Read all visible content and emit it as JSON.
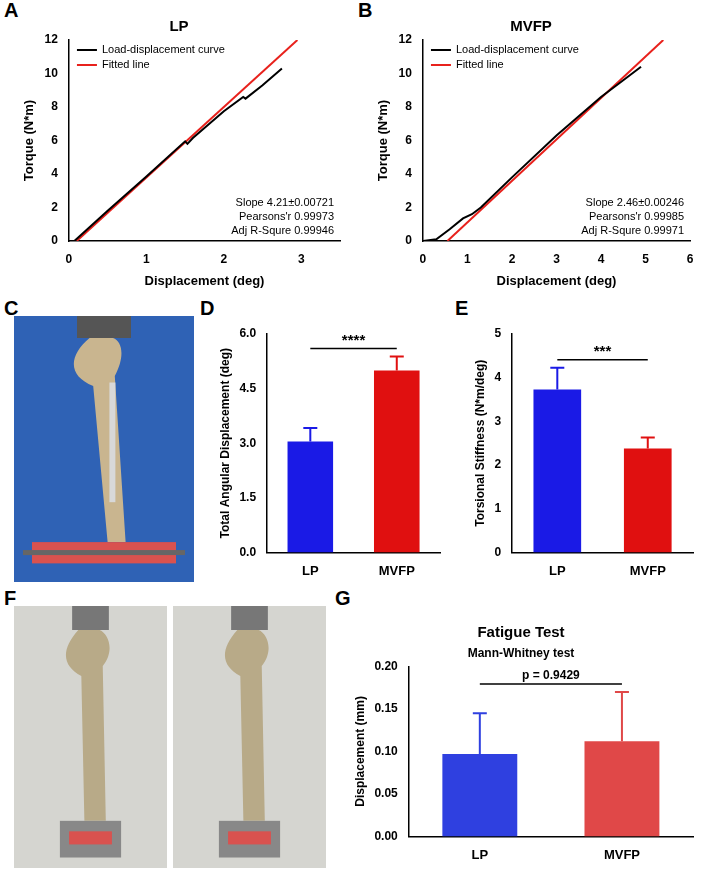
{
  "chart_data": [
    {
      "panel_label": "A",
      "type": "line",
      "title": "LP",
      "x_label": "Displacement (deg)",
      "y_label": "Torque (N*m)",
      "xlim": [
        0,
        3.5
      ],
      "xticks": [
        0,
        1,
        2,
        3
      ],
      "ylim": [
        0,
        12
      ],
      "yticks": [
        0,
        2,
        4,
        6,
        8,
        10,
        12
      ],
      "grid": false,
      "legend": "upper left",
      "series": [
        {
          "name": "Load-displacement curve",
          "color": "#000000",
          "x": [
            0.07,
            0.5,
            1.0,
            1.5,
            1.53,
            1.6,
            2.0,
            2.25,
            2.28,
            2.5,
            2.75
          ],
          "values": [
            0,
            1.8,
            3.85,
            5.95,
            5.8,
            6.15,
            7.75,
            8.6,
            8.5,
            9.3,
            10.3
          ]
        },
        {
          "name": "Fitted line",
          "color": "#e8211c",
          "x": [
            0.1,
            2.95
          ],
          "values": [
            0,
            12
          ]
        }
      ],
      "annotations": [
        "Slope 4.21±0.00721",
        "Pearsons'r 0.99973",
        "Adj R-Squre 0.99946"
      ]
    },
    {
      "panel_label": "B",
      "type": "line",
      "title": "MVFP",
      "x_label": "Displacement (deg)",
      "y_label": "Torque (N*m)",
      "xlim": [
        0,
        6
      ],
      "xticks": [
        0,
        1,
        2,
        3,
        4,
        5,
        6
      ],
      "ylim": [
        0,
        12
      ],
      "yticks": [
        0,
        2,
        4,
        6,
        8,
        10,
        12
      ],
      "grid": false,
      "legend": "upper left",
      "series": [
        {
          "name": "Load-displacement curve",
          "color": "#000000",
          "x": [
            0,
            0.3,
            0.6,
            0.9,
            1.1,
            1.3,
            2.0,
            3.0,
            4.0,
            4.5,
            4.9
          ],
          "values": [
            0,
            0.1,
            0.7,
            1.35,
            1.6,
            2.0,
            3.8,
            6.3,
            8.6,
            9.6,
            10.4
          ]
        },
        {
          "name": "Fitted line",
          "color": "#e8211c",
          "x": [
            0.55,
            5.4
          ],
          "values": [
            0,
            12
          ]
        }
      ],
      "annotations": [
        "Slope 2.46±0.00246",
        "Pearsons'r 0.99985",
        "Adj R-Squre 0.99971"
      ]
    },
    {
      "panel_label": "D",
      "type": "bar",
      "y_label": "Total Angular Displacement (deg)",
      "categories": [
        "LP",
        "MVFP"
      ],
      "values": [
        3.05,
        5.0
      ],
      "errors": [
        0.37,
        0.38
      ],
      "colors": [
        "#1a1ae6",
        "#e01010"
      ],
      "ylim": [
        0,
        6
      ],
      "yticks": [
        {
          "value": 0,
          "label": "0.0"
        },
        1.5,
        {
          "value": 3,
          "label": "3.0"
        },
        4.5,
        {
          "value": 6,
          "label": "6.0"
        }
      ],
      "grid": false,
      "annotations": [
        "****"
      ]
    },
    {
      "panel_label": "E",
      "type": "bar",
      "y_label": "Torsional Stiffness (N*m/deg)",
      "categories": [
        "LP",
        "MVFP"
      ],
      "values": [
        3.73,
        2.38
      ],
      "errors": [
        0.5,
        0.25
      ],
      "colors": [
        "#1a1ae6",
        "#e01010"
      ],
      "ylim": [
        0,
        5
      ],
      "yticks": [
        0,
        1,
        2,
        3,
        4,
        5
      ],
      "grid": false,
      "annotations": [
        "***"
      ]
    },
    {
      "panel_label": "G",
      "type": "bar",
      "title": "Fatigue Test",
      "subtitle": "Mann-Whitney test",
      "y_label": "Displacement (mm)",
      "categories": [
        "LP",
        "MVFP"
      ],
      "values": [
        0.097,
        0.112
      ],
      "errors": [
        0.048,
        0.058
      ],
      "colors": [
        "#2f40e0",
        "#e04848"
      ],
      "ylim": [
        0,
        0.2
      ],
      "yticks": [
        {
          "value": 0,
          "label": "0.00"
        },
        {
          "value": 0.05,
          "label": "0.05"
        },
        {
          "value": 0.1,
          "label": "0.10"
        },
        {
          "value": 0.15,
          "label": "0.15"
        },
        {
          "value": 0.2,
          "label": "0.20"
        }
      ],
      "grid": false,
      "annotations": [
        "p = 0.9429"
      ]
    }
  ],
  "images": [
    {
      "panel_label": "C"
    },
    {
      "panel_label": "F"
    }
  ]
}
